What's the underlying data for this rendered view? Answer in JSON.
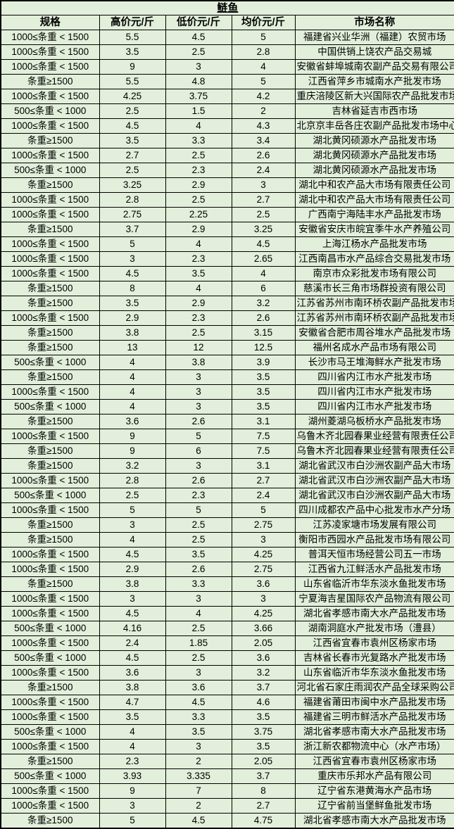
{
  "colors": {
    "background": "#e2efda",
    "border": "#000000",
    "text": "#000000"
  },
  "table": {
    "title": "鲢鱼",
    "columns": [
      "规格",
      "高价元/斤",
      "低价元/斤",
      "均价元/斤",
      "市场名称"
    ],
    "rows": [
      [
        "1000≤条重 < 1500",
        "5.5",
        "4.5",
        "5",
        "福建省兴业华洲（福建）农贸市场"
      ],
      [
        "1000≤条重 < 1500",
        "3.5",
        "2.5",
        "2.8",
        "中国供销上饶农产品交易城"
      ],
      [
        "1000≤条重 < 1500",
        "9",
        "3",
        "4",
        "安徽省蚌埠城南农副产品交易有限公司"
      ],
      [
        "条重≥1500",
        "5.5",
        "4.8",
        "5",
        "江西省萍乡市城南水产批发市场"
      ],
      [
        "1000≤条重 < 1500",
        "4.25",
        "3.75",
        "4.2",
        "重庆涪陵区新大兴国际农产品批发市场"
      ],
      [
        "500≤条重 < 1000",
        "2.5",
        "1.5",
        "2",
        "吉林省延吉市西市场"
      ],
      [
        "1000≤条重 < 1500",
        "4.5",
        "4",
        "4.3",
        "北京京丰岳各庄农副产品批发市场中心"
      ],
      [
        "条重≥1500",
        "3.5",
        "3.3",
        "3.4",
        "湖北黄冈硕源水产品批发市场"
      ],
      [
        "1000≤条重 < 1500",
        "2.7",
        "2.5",
        "2.6",
        "湖北黄冈硕源水产品批发市场"
      ],
      [
        "500≤条重 < 1000",
        "2.5",
        "2.3",
        "2.4",
        "湖北黄冈硕源水产品批发市场"
      ],
      [
        "条重≥1500",
        "3.25",
        "2.9",
        "3",
        "湖北中和农产品大市场有限责任公司"
      ],
      [
        "1000≤条重 < 1500",
        "2.8",
        "2.5",
        "2.7",
        "湖北中和农产品大市场有限责任公司"
      ],
      [
        "1000≤条重 < 1500",
        "2.75",
        "2.25",
        "2.5",
        "广西南宁海陆丰水产品批发市场"
      ],
      [
        "条重≥1500",
        "3.7",
        "2.9",
        "3.25",
        "安徽省安庆市皖宜季牛水产养殖公司"
      ],
      [
        "1000≤条重 < 1500",
        "5",
        "4",
        "4.5",
        "上海江杨水产品批发市场"
      ],
      [
        "1000≤条重 < 1500",
        "3",
        "2.3",
        "2.65",
        "江西南昌市水产品综合交易批发市场"
      ],
      [
        "1000≤条重 < 1500",
        "4.5",
        "3.5",
        "4",
        "南京市众彩批发市场有限公司"
      ],
      [
        "条重≥1500",
        "8",
        "4",
        "6",
        "慈溪市长三角市场群投资有限公司"
      ],
      [
        "条重≥1500",
        "3.5",
        "2.9",
        "3.2",
        "江苏省苏州市南环桥农副产品批发市场"
      ],
      [
        "1000≤条重 < 1500",
        "2.9",
        "2.3",
        "2.6",
        "江苏省苏州市南环桥农副产品批发市场"
      ],
      [
        "条重≥1500",
        "3.8",
        "2.5",
        "3.15",
        "安徽省合肥市周谷堆水产品批发市场"
      ],
      [
        "条重≥1500",
        "13",
        "12",
        "12.5",
        "福州名成水产品市场有限公司"
      ],
      [
        "500≤条重 < 1000",
        "4",
        "3.8",
        "3.9",
        "长沙市马王堆海鲜水产批发市场"
      ],
      [
        "条重≥1500",
        "4",
        "3",
        "3.5",
        "四川省内江市水产批发市场"
      ],
      [
        "1000≤条重 < 1500",
        "4",
        "3",
        "3.5",
        "四川省内江市水产批发市场"
      ],
      [
        "500≤条重 < 1000",
        "4",
        "3",
        "3.5",
        "四川省内江市水产批发市场"
      ],
      [
        "条重≥1500",
        "3.6",
        "2.6",
        "3.1",
        "湖州菱湖乌板桥水产品批发市场"
      ],
      [
        "1000≤条重 < 1500",
        "9",
        "5",
        "7.5",
        "乌鲁木齐北园春果业经营有限责任公司"
      ],
      [
        "条重≥1500",
        "9",
        "6",
        "7.5",
        "乌鲁木齐北园春果业经营有限责任公司"
      ],
      [
        "条重≥1500",
        "3.2",
        "3",
        "3.1",
        "湖北省武汉市白沙洲农副产品大市场"
      ],
      [
        "1000≤条重 < 1500",
        "2.8",
        "2.6",
        "2.7",
        "湖北省武汉市白沙洲农副产品大市场"
      ],
      [
        "500≤条重 < 1000",
        "2.5",
        "2.3",
        "2.4",
        "湖北省武汉市白沙洲农副产品大市场"
      ],
      [
        "1000≤条重 < 1500",
        "5",
        "5",
        "5",
        "四川成都农产品中心批发市水产分场"
      ],
      [
        "条重≥1500",
        "3",
        "2.5",
        "2.75",
        "江苏凌家塘市场发展有限公司"
      ],
      [
        "条重≥1500",
        "4",
        "2.5",
        "3",
        "衡阳市西园水产品批发市场有限公司"
      ],
      [
        "1000≤条重 < 1500",
        "4.5",
        "3.5",
        "4.25",
        "普洱天恒市场经营公司五一市场"
      ],
      [
        "1000≤条重 < 1500",
        "2.9",
        "2.6",
        "2.75",
        "江西省九江鲜活水产品批发市场"
      ],
      [
        "条重≥1500",
        "3.8",
        "3.3",
        "3.6",
        "山东省临沂市华东淡水鱼批发市场"
      ],
      [
        "1000≤条重 < 1500",
        "3",
        "3",
        "3",
        "宁夏海吉星国际农产品物流有限公司"
      ],
      [
        "1000≤条重 < 1500",
        "4.5",
        "4",
        "4.25",
        "湖北省孝感市南大水产品批发市场"
      ],
      [
        "500≤条重 < 1000",
        "4.16",
        "2.5",
        "3.66",
        "湖南洞庭水产批发市场（澧县）"
      ],
      [
        "1000≤条重 < 1500",
        "2.4",
        "1.85",
        "2.05",
        "江西省宜春市袁州区杨家市场"
      ],
      [
        "500≤条重 < 1000",
        "4.5",
        "2.5",
        "3.6",
        "吉林省长春市光复路水产批发市场"
      ],
      [
        "1000≤条重 < 1500",
        "3.6",
        "3",
        "3.2",
        "山东省临沂市华东淡水鱼批发市场"
      ],
      [
        "条重≥1500",
        "3.8",
        "3.6",
        "3.7",
        "河北省石家庄雨润农产品全球采购公司"
      ],
      [
        "1000≤条重 < 1500",
        "4.7",
        "4.5",
        "4.6",
        "福建省莆田市闽中水产品批发市场"
      ],
      [
        "1000≤条重 < 1500",
        "3.5",
        "3.3",
        "3.5",
        "福建省三明市鲜活水产品批发市场"
      ],
      [
        "500≤条重 < 1000",
        "4",
        "3.5",
        "3.75",
        "湖北省孝感市南大水产品批发市场"
      ],
      [
        "1000≤条重 < 1500",
        "4",
        "3",
        "3.5",
        "浙江新农都物流中心（水产市场）"
      ],
      [
        "条重≥1500",
        "2.3",
        "2",
        "2.05",
        "江西省宜春市袁州区杨家市场"
      ],
      [
        "500≤条重 < 1000",
        "3.93",
        "3.335",
        "3.7",
        "重庆市乐邦水产品有限公司"
      ],
      [
        "1000≤条重 < 1500",
        "9",
        "7",
        "8",
        "辽宁省东港黄海水产品市场"
      ],
      [
        "1000≤条重 < 1500",
        "3",
        "2",
        "2.7",
        "辽宁省前当堡鲜鱼批发市场"
      ],
      [
        "条重≥1500",
        "5",
        "4.5",
        "4.75",
        "湖北省孝感市南大水产品批发市场"
      ]
    ]
  }
}
